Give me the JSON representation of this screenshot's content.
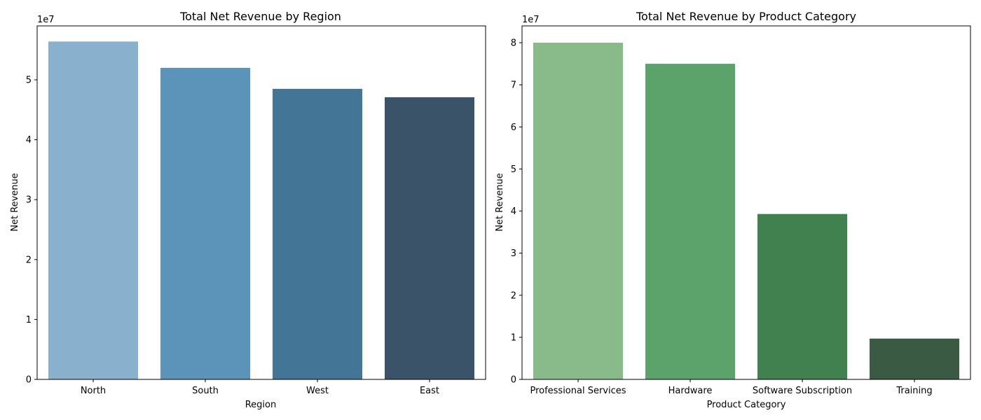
{
  "chart_data": [
    {
      "type": "bar",
      "title": "Total Net Revenue by Region",
      "xlabel": "Region",
      "ylabel": "Net Revenue",
      "y_offset_label": "1e7",
      "categories": [
        "North",
        "South",
        "West",
        "East"
      ],
      "values": [
        56400000,
        52000000,
        48500000,
        47100000
      ],
      "colors": [
        "#89b0cc",
        "#5b93b9",
        "#437596",
        "#3b5368"
      ],
      "ylim": [
        0,
        59000000
      ],
      "yticks": [
        0,
        10000000,
        20000000,
        30000000,
        40000000,
        50000000
      ],
      "ytick_labels": [
        "0",
        "1",
        "2",
        "3",
        "4",
        "5"
      ],
      "grid": false
    },
    {
      "type": "bar",
      "title": "Total Net Revenue by Product Category",
      "xlabel": "Product Category",
      "ylabel": "Net Revenue",
      "y_offset_label": "1e7",
      "categories": [
        "Professional Services",
        "Hardware",
        "Software Subscription",
        "Training"
      ],
      "values": [
        80000000,
        75000000,
        39300000,
        9700000
      ],
      "colors": [
        "#88bb89",
        "#5ba26b",
        "#41804f",
        "#3b5a43"
      ],
      "ylim": [
        0,
        84000000
      ],
      "yticks": [
        0,
        10000000,
        20000000,
        30000000,
        40000000,
        50000000,
        60000000,
        70000000,
        80000000
      ],
      "ytick_labels": [
        "0",
        "1",
        "2",
        "3",
        "4",
        "5",
        "6",
        "7",
        "8"
      ],
      "grid": false
    }
  ]
}
